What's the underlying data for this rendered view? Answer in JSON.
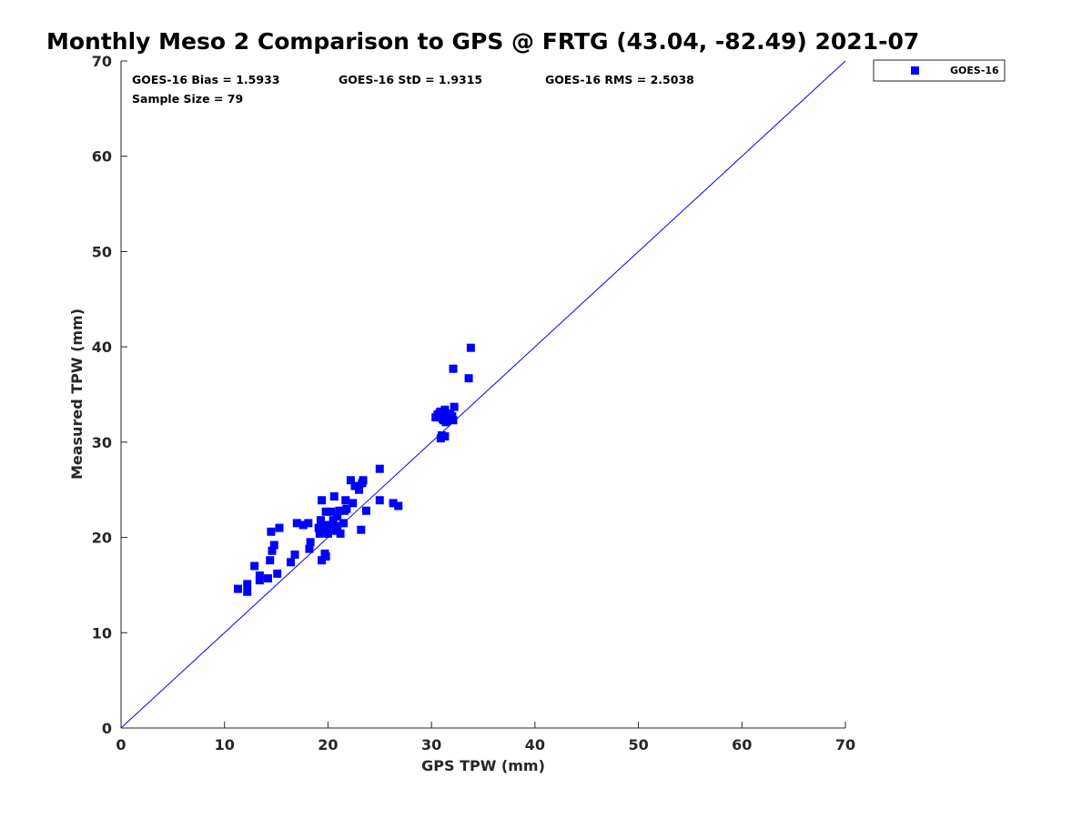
{
  "chart_data": {
    "type": "scatter",
    "title": "Monthly Meso 2 Comparison to GPS @ FRTG (43.04, -82.49) 2021-07",
    "xlabel": "GPS TPW (mm)",
    "ylabel": "Measured TPW (mm)",
    "xlim": [
      0,
      70
    ],
    "ylim": [
      0,
      70
    ],
    "x_ticks": [
      0,
      10,
      20,
      30,
      40,
      50,
      60,
      70
    ],
    "y_ticks": [
      0,
      10,
      20,
      30,
      40,
      50,
      60,
      70
    ],
    "grid": false,
    "legend_position": "outside-top-right",
    "stats": {
      "bias": "GOES-16 Bias = 1.5933",
      "std": "GOES-16 StD = 1.9315",
      "rms": "GOES-16 RMS = 2.5038",
      "sample_size": "Sample Size = 79"
    },
    "reference_line": {
      "type": "1:1",
      "from": [
        0,
        0
      ],
      "to": [
        70,
        70
      ],
      "color": "#0000ff"
    },
    "series": [
      {
        "name": "GOES-16",
        "color": "#0000ff",
        "marker": "square",
        "points": [
          [
            11.3,
            14.6
          ],
          [
            12.2,
            14.3
          ],
          [
            12.2,
            15.1
          ],
          [
            12.9,
            17.0
          ],
          [
            13.4,
            16.0
          ],
          [
            13.4,
            15.5
          ],
          [
            14.2,
            15.7
          ],
          [
            14.4,
            17.6
          ],
          [
            14.5,
            20.6
          ],
          [
            14.6,
            18.6
          ],
          [
            14.8,
            19.2
          ],
          [
            15.1,
            16.2
          ],
          [
            15.3,
            21.0
          ],
          [
            16.4,
            17.4
          ],
          [
            16.8,
            18.2
          ],
          [
            17.0,
            21.5
          ],
          [
            17.6,
            21.3
          ],
          [
            18.1,
            21.5
          ],
          [
            18.2,
            18.8
          ],
          [
            18.3,
            19.5
          ],
          [
            19.1,
            21.0
          ],
          [
            19.2,
            20.4
          ],
          [
            19.3,
            21.8
          ],
          [
            19.4,
            23.9
          ],
          [
            19.4,
            17.6
          ],
          [
            19.6,
            21.3
          ],
          [
            19.7,
            18.3
          ],
          [
            19.7,
            20.8
          ],
          [
            19.8,
            22.7
          ],
          [
            19.8,
            18.0
          ],
          [
            20.0,
            20.4
          ],
          [
            20.1,
            21.3
          ],
          [
            20.2,
            20.7
          ],
          [
            20.3,
            22.7
          ],
          [
            20.5,
            21.8
          ],
          [
            20.6,
            24.3
          ],
          [
            20.8,
            21.2
          ],
          [
            20.9,
            20.7
          ],
          [
            20.9,
            22.2
          ],
          [
            21.1,
            22.8
          ],
          [
            21.2,
            20.4
          ],
          [
            21.5,
            21.5
          ],
          [
            21.6,
            22.8
          ],
          [
            21.7,
            23.9
          ],
          [
            21.8,
            23.0
          ],
          [
            22.2,
            26.0
          ],
          [
            22.4,
            23.6
          ],
          [
            22.6,
            25.4
          ],
          [
            23.0,
            25.0
          ],
          [
            23.2,
            20.8
          ],
          [
            23.3,
            25.7
          ],
          [
            23.4,
            26.0
          ],
          [
            23.7,
            22.8
          ],
          [
            25.0,
            27.2
          ],
          [
            25.0,
            23.9
          ],
          [
            26.3,
            23.6
          ],
          [
            26.8,
            23.3
          ],
          [
            30.4,
            32.6
          ],
          [
            30.8,
            32.6
          ],
          [
            30.8,
            33.1
          ],
          [
            30.9,
            30.4
          ],
          [
            31.0,
            30.7
          ],
          [
            31.1,
            32.4
          ],
          [
            31.2,
            32.3
          ],
          [
            31.3,
            30.6
          ],
          [
            31.3,
            33.4
          ],
          [
            31.4,
            32.1
          ],
          [
            31.5,
            32.9
          ],
          [
            31.6,
            32.6
          ],
          [
            31.8,
            33.0
          ],
          [
            32.0,
            32.7
          ],
          [
            32.1,
            32.3
          ],
          [
            32.1,
            37.7
          ],
          [
            32.2,
            33.7
          ],
          [
            33.6,
            36.7
          ],
          [
            33.8,
            39.9
          ],
          [
            30.6,
            32.9
          ],
          [
            31.9,
            32.5
          ],
          [
            30.9,
            33.2
          ]
        ]
      }
    ]
  }
}
